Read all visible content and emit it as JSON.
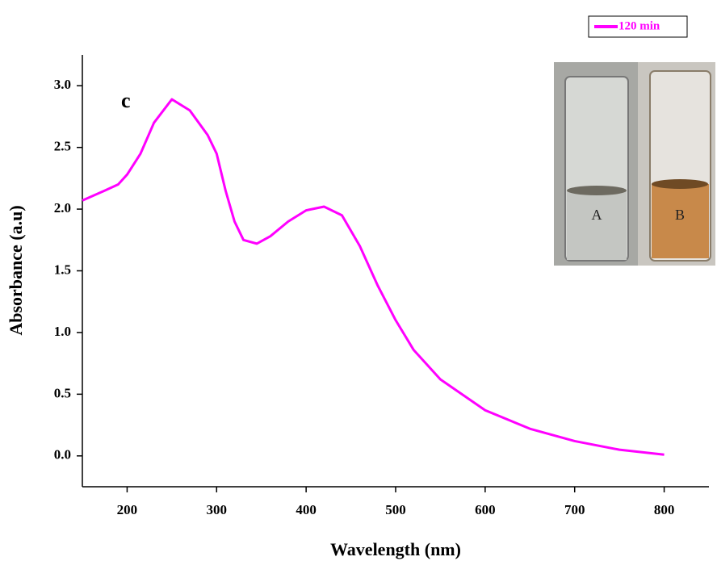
{
  "chart_data": {
    "type": "line",
    "xlabel": "Wavelength (nm)",
    "ylabel": "Absorbance (a.u)",
    "annotation": "c",
    "inset_labels": [
      "A",
      "B"
    ],
    "x": [
      150,
      175,
      190,
      200,
      215,
      230,
      250,
      270,
      290,
      300,
      310,
      320,
      330,
      345,
      360,
      380,
      400,
      420,
      440,
      460,
      480,
      500,
      520,
      550,
      600,
      650,
      700,
      750,
      800
    ],
    "series": [
      {
        "name": "120 min",
        "color": "#ff00ff",
        "values": [
          2.07,
          2.15,
          2.2,
          2.28,
          2.45,
          2.7,
          2.89,
          2.8,
          2.6,
          2.45,
          2.15,
          1.9,
          1.75,
          1.72,
          1.78,
          1.9,
          1.99,
          2.02,
          1.95,
          1.7,
          1.38,
          1.1,
          0.86,
          0.62,
          0.37,
          0.22,
          0.12,
          0.05,
          0.01
        ]
      }
    ],
    "xlim": [
      150,
      850
    ],
    "ylim": [
      -0.25,
      3.25
    ],
    "xticks": [
      200,
      300,
      400,
      500,
      600,
      700,
      800
    ],
    "yticks": [
      {
        "value": 0,
        "label": "0.0"
      },
      {
        "value": 0.5,
        "label": "0.5"
      },
      {
        "value": 1,
        "label": "1.0"
      },
      {
        "value": 1.5,
        "label": "1.5"
      },
      {
        "value": 2,
        "label": "2.0"
      },
      {
        "value": 2.5,
        "label": "2.5"
      },
      {
        "value": 3,
        "label": "3.0"
      }
    ],
    "legend": "top-right"
  }
}
